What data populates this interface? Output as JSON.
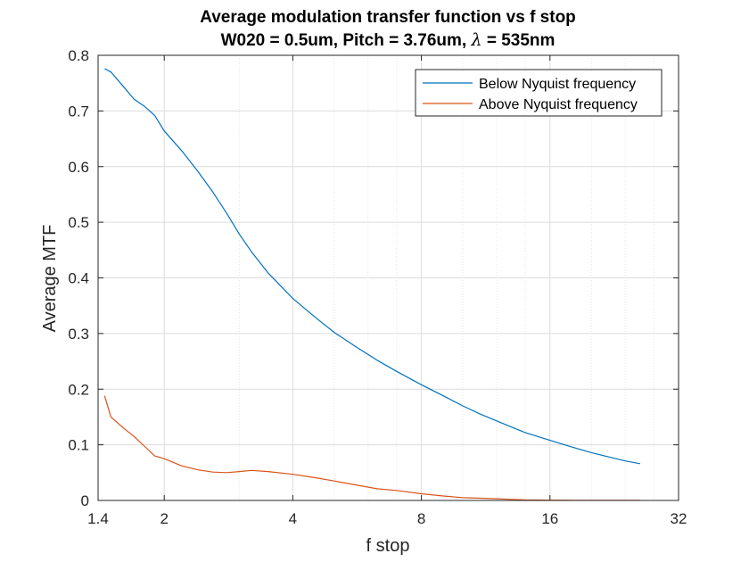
{
  "chart_data": {
    "type": "line",
    "title": "Average modulation transfer function vs f stop",
    "subtitle_prefix": "W020 = 0.5um, Pitch = 3.76um, ",
    "subtitle_symbol": "λ",
    "subtitle_suffix": " = 535nm",
    "xlabel": "f stop",
    "ylabel": "Average MTF",
    "xscale": "log2",
    "xlim": [
      1.4,
      32
    ],
    "ylim": [
      0,
      0.8
    ],
    "x_ticks": [
      1.4,
      2,
      4,
      8,
      16,
      32
    ],
    "x_tick_labels": [
      "1.4",
      "2",
      "4",
      "8",
      "16",
      "32"
    ],
    "y_ticks": [
      0,
      0.1,
      0.2,
      0.3,
      0.4,
      0.5,
      0.6,
      0.7,
      0.8
    ],
    "y_tick_labels": [
      "0",
      "0.1",
      "0.2",
      "0.3",
      "0.4",
      "0.5",
      "0.6",
      "0.7",
      "0.8"
    ],
    "grid": true,
    "legend_position": "top-right",
    "series": [
      {
        "name": "Below Nyquist frequency",
        "color": "#0072BD",
        "x": [
          1.45,
          1.5,
          1.6,
          1.7,
          1.8,
          1.9,
          2.0,
          2.2,
          2.4,
          2.6,
          2.8,
          3.0,
          3.2,
          3.5,
          4.0,
          4.5,
          5.0,
          5.6,
          6.3,
          7.0,
          8.0,
          9.0,
          10.0,
          11.0,
          12.0,
          13.0,
          14.0,
          16.0,
          18.0,
          20.0,
          22.0,
          24.0,
          26.0
        ],
        "y": [
          0.776,
          0.77,
          0.745,
          0.721,
          0.708,
          0.692,
          0.664,
          0.628,
          0.591,
          0.554,
          0.516,
          0.478,
          0.447,
          0.409,
          0.363,
          0.33,
          0.302,
          0.277,
          0.252,
          0.232,
          0.208,
          0.188,
          0.17,
          0.155,
          0.143,
          0.132,
          0.122,
          0.108,
          0.096,
          0.086,
          0.078,
          0.071,
          0.066
        ]
      },
      {
        "name": "Above Nyquist frequency",
        "color": "#D95319",
        "x": [
          1.45,
          1.5,
          1.6,
          1.7,
          1.8,
          1.9,
          2.0,
          2.2,
          2.4,
          2.6,
          2.8,
          3.0,
          3.2,
          3.5,
          4.0,
          4.5,
          5.0,
          5.6,
          6.3,
          7.0,
          8.0,
          9.0,
          10.0,
          11.0,
          12.0,
          13.0,
          14.0,
          16.0,
          18.0,
          20.0,
          22.0,
          24.0,
          26.0
        ],
        "y": [
          0.188,
          0.15,
          0.131,
          0.115,
          0.097,
          0.08,
          0.075,
          0.062,
          0.055,
          0.051,
          0.05,
          0.052,
          0.054,
          0.052,
          0.047,
          0.041,
          0.035,
          0.028,
          0.021,
          0.018,
          0.012,
          0.008,
          0.005,
          0.004,
          0.003,
          0.002,
          0.001,
          0.0005,
          0.0003,
          0.0002,
          0.0002,
          0.0001,
          0.0001
        ]
      }
    ]
  }
}
